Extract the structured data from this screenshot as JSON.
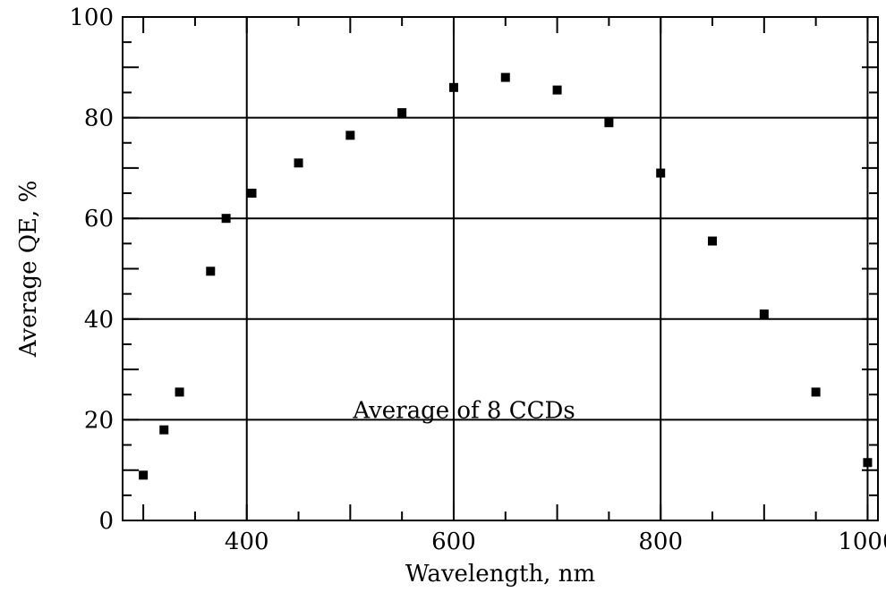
{
  "chart_data": {
    "type": "scatter",
    "title": "",
    "xlabel": "Wavelength, nm",
    "ylabel": "Average QE, %",
    "xlim": [
      280,
      1010
    ],
    "ylim": [
      0,
      100
    ],
    "grid": true,
    "x_major_ticks": [
      400,
      600,
      800,
      1000
    ],
    "y_major_ticks": [
      0,
      20,
      40,
      60,
      80,
      100
    ],
    "x_tick_labels": [
      "400",
      "600",
      "800",
      "1000"
    ],
    "y_tick_labels": [
      "0",
      "20",
      "40",
      "60",
      "80",
      "100"
    ],
    "annotation": {
      "text": "Average of 8 CCDs",
      "x": 610,
      "y": 20
    },
    "points": [
      {
        "x": 300,
        "y": 9
      },
      {
        "x": 320,
        "y": 18
      },
      {
        "x": 335,
        "y": 25.5
      },
      {
        "x": 365,
        "y": 49.5
      },
      {
        "x": 380,
        "y": 60
      },
      {
        "x": 405,
        "y": 65
      },
      {
        "x": 450,
        "y": 71
      },
      {
        "x": 500,
        "y": 76.5
      },
      {
        "x": 550,
        "y": 81
      },
      {
        "x": 600,
        "y": 86
      },
      {
        "x": 650,
        "y": 88
      },
      {
        "x": 700,
        "y": 85.5
      },
      {
        "x": 750,
        "y": 79
      },
      {
        "x": 800,
        "y": 69
      },
      {
        "x": 850,
        "y": 55.5
      },
      {
        "x": 900,
        "y": 41
      },
      {
        "x": 950,
        "y": 25.5
      },
      {
        "x": 1000,
        "y": 11.5
      }
    ]
  }
}
